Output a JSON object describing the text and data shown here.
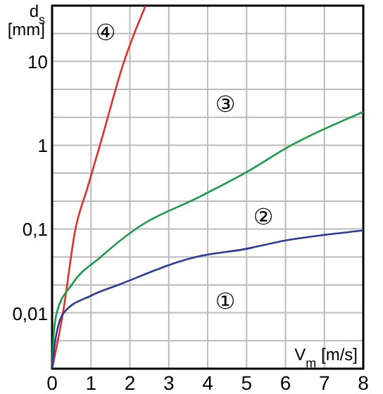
{
  "chart_data": {
    "type": "line",
    "xlabel": "V$_{m}$ [m/s]",
    "ylabel": "d$_{s}$\n[mm]",
    "log": "y",
    "grid": true,
    "marker": "none",
    "line_style": "solid",
    "xlim": [
      0,
      8
    ],
    "xticks": [
      0,
      1,
      2,
      3,
      4,
      5,
      6,
      7,
      8
    ],
    "ylim": [
      0.00215,
      46.4
    ],
    "yticks": [
      {
        "value": 0.00464,
        "label": null
      },
      {
        "value": 0.01,
        "label": "0,01"
      },
      {
        "value": 0.0215,
        "label": null
      },
      {
        "value": 0.0464,
        "label": null
      },
      {
        "value": 0.1,
        "label": "0,1"
      },
      {
        "value": 0.215,
        "label": null
      },
      {
        "value": 0.464,
        "label": null
      },
      1,
      {
        "value": 2.15,
        "label": null
      },
      {
        "value": 4.64,
        "label": null
      },
      10,
      {
        "value": 21.5,
        "label": null
      }
    ],
    "series": [
      {
        "color": "#e0302a",
        "x": [
          0,
          0.28,
          0.6,
          0.9,
          1.23,
          1.85,
          2.4
        ],
        "values": [
          0.00215,
          0.01,
          0.1,
          0.3,
          1,
          10,
          46
        ]
      },
      {
        "color": "#1a9a4a",
        "x": [
          0,
          0.03,
          0.12,
          0.5,
          1.25,
          2.15,
          3.85,
          4.95,
          6.15,
          8
        ],
        "values": [
          0.00215,
          0.0046,
          0.01,
          0.0215,
          0.0464,
          0.1,
          0.25,
          0.464,
          1,
          2.5
        ]
      },
      {
        "color": "#2a3a9a",
        "x": [
          0,
          0.08,
          0.3,
          1,
          1.7,
          3.7,
          5,
          6,
          7,
          8
        ],
        "values": [
          0.00215,
          0.0046,
          0.01,
          0.016,
          0.0215,
          0.0464,
          0.058,
          0.073,
          0.085,
          0.096
        ]
      }
    ],
    "annotations": [
      "④",
      "③",
      "②",
      "①"
    ]
  }
}
